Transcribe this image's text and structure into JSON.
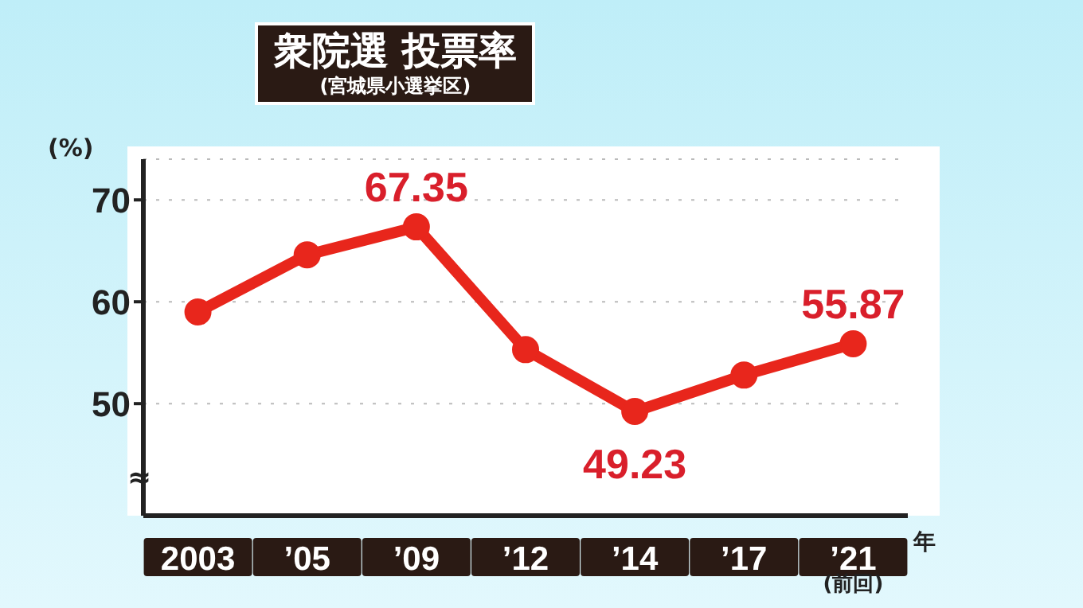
{
  "chart_data": {
    "type": "line",
    "title": "衆院選 投票率",
    "subtitle": "(宮城県小選挙区)",
    "ylabel": "(%)",
    "xlabel": "年",
    "categories": [
      "2003",
      "’05",
      "’09",
      "’12",
      "’14",
      "’17",
      "’21"
    ],
    "series": [
      {
        "color": "#e8261c",
        "values": [
          59.0,
          64.6,
          67.35,
          55.3,
          49.23,
          52.8,
          55.87
        ],
        "value_labels": [
          null,
          null,
          "67.35",
          null,
          "49.23",
          null,
          "55.87"
        ]
      }
    ],
    "ylim": [
      39,
      74
    ],
    "yticks": [
      50,
      60,
      70
    ],
    "grid": "y",
    "marker": "circle",
    "line_style": "solid",
    "annotations": [
      "≈",
      "(前回)"
    ]
  }
}
